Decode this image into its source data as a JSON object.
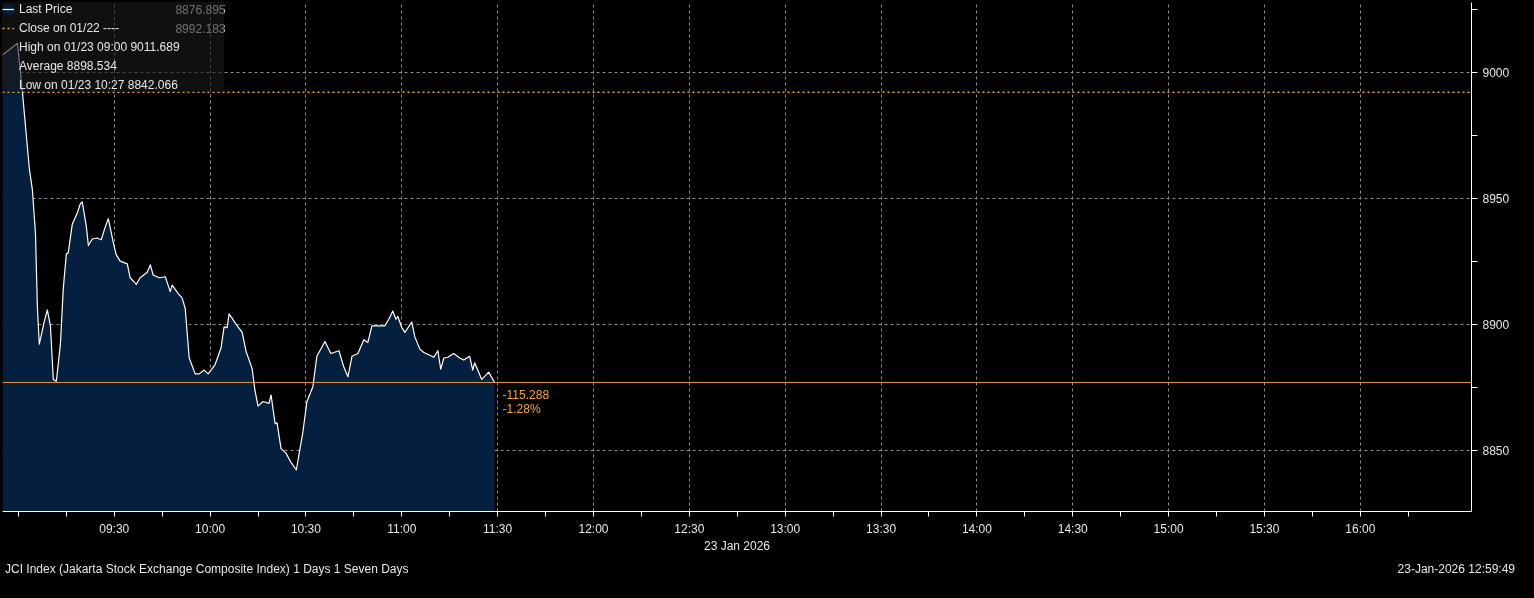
{
  "chart_data": {
    "type": "area",
    "xlabel": "23 Jan 2026",
    "x": [
      8.917,
      8.995,
      9.021,
      9.057,
      9.073,
      9.089,
      9.099,
      9.109,
      9.135,
      9.151,
      9.167,
      9.182,
      9.198,
      9.219,
      9.234,
      9.25,
      9.26,
      9.281,
      9.307,
      9.323,
      9.333,
      9.354,
      9.365,
      9.385,
      9.411,
      9.432,
      9.453,
      9.469,
      9.495,
      9.51,
      9.531,
      9.568,
      9.583,
      9.615,
      9.635,
      9.672,
      9.688,
      9.703,
      9.734,
      9.766,
      9.792,
      9.802,
      9.833,
      9.854,
      9.87,
      9.891,
      9.922,
      9.943,
      9.969,
      9.99,
      10.026,
      10.057,
      10.073,
      10.089,
      10.099,
      10.135,
      10.167,
      10.188,
      10.219,
      10.234,
      10.25,
      10.276,
      10.307,
      10.318,
      10.339,
      10.349,
      10.37,
      10.396,
      10.422,
      10.45,
      10.464,
      10.484,
      10.505,
      10.536,
      10.557,
      10.599,
      10.63,
      10.672,
      10.698,
      10.719,
      10.74,
      10.771,
      10.802,
      10.823,
      10.844,
      10.875,
      10.911,
      10.932,
      10.953,
      10.969,
      10.979,
      11.0,
      11.016,
      11.052,
      11.068,
      11.094,
      11.115,
      11.146,
      11.167,
      11.188,
      11.203,
      11.219,
      11.24,
      11.271,
      11.302,
      11.323,
      11.354,
      11.37,
      11.38,
      11.417,
      11.453,
      11.484
    ],
    "series": [
      {
        "name": "Last Price",
        "color": "#04203e",
        "values": [
          9007.0,
          9011.7,
          8992.3,
          8961.8,
          8953.4,
          8936.1,
          8906.8,
          8892.1,
          8901.2,
          8905.7,
          8899.4,
          8878.1,
          8877.4,
          8892.1,
          8914.1,
          8928.0,
          8928.4,
          8939.8,
          8944.2,
          8947.9,
          8948.6,
          8939.1,
          8931.3,
          8933.9,
          8934.3,
          8933.6,
          8938.7,
          8942.0,
          8932.5,
          8927.7,
          8925.1,
          8924.0,
          8918.5,
          8915.9,
          8918.5,
          8920.7,
          8923.6,
          8919.6,
          8918.5,
          8918.9,
          8913.0,
          8915.6,
          8912.3,
          8910.4,
          8906.4,
          8886.6,
          8880.3,
          8880.3,
          8881.8,
          8880.3,
          8884.0,
          8890.6,
          8899.0,
          8898.7,
          8904.2,
          8900.1,
          8896.8,
          8889.1,
          8882.5,
          8873.7,
          8867.5,
          8869.3,
          8868.6,
          8871.9,
          8860.5,
          8860.9,
          8850.6,
          8848.8,
          8845.1,
          8842.1,
          8848.4,
          8857.2,
          8869.3,
          8875.2,
          8887.3,
          8893.2,
          8888.4,
          8889.5,
          8882.9,
          8879.2,
          8887.3,
          8888.4,
          8893.9,
          8892.8,
          8899.4,
          8899.4,
          8899.4,
          8902.0,
          8905.3,
          8902.0,
          8903.1,
          8898.7,
          8896.8,
          8900.9,
          8895.0,
          8890.2,
          8888.8,
          8887.7,
          8886.9,
          8889.5,
          8882.2,
          8886.6,
          8886.9,
          8888.4,
          8886.6,
          8885.8,
          8887.3,
          8881.8,
          8884.7,
          8878.1,
          8881.0,
          8876.9
        ]
      }
    ],
    "xlim": [
      8.917,
      16.58
    ],
    "ylim": [
      8825.6,
      9027.9
    ],
    "xticks": [
      {
        "value": 9,
        "label": null
      },
      {
        "value": 9.25,
        "label": null
      },
      {
        "value": 9.5,
        "label": "09:30"
      },
      {
        "value": 9.75,
        "label": null
      },
      {
        "value": 10,
        "label": "10:00"
      },
      {
        "value": 10.25,
        "label": null
      },
      {
        "value": 10.5,
        "label": "10:30"
      },
      {
        "value": 10.75,
        "label": null
      },
      {
        "value": 11,
        "label": "11:00"
      },
      {
        "value": 11.25,
        "label": null
      },
      {
        "value": 11.5,
        "label": "11:30"
      },
      {
        "value": 11.75,
        "label": null
      },
      {
        "value": 12,
        "label": "12:00"
      },
      {
        "value": 12.25,
        "label": null
      },
      {
        "value": 12.5,
        "label": "12:30"
      },
      {
        "value": 12.75,
        "label": null
      },
      {
        "value": 13,
        "label": "13:00"
      },
      {
        "value": 13.25,
        "label": null
      },
      {
        "value": 13.5,
        "label": "13:30"
      },
      {
        "value": 13.75,
        "label": null
      },
      {
        "value": 14,
        "label": "14:00"
      },
      {
        "value": 14.25,
        "label": null
      },
      {
        "value": 14.5,
        "label": "14:30"
      },
      {
        "value": 14.75,
        "label": null
      },
      {
        "value": 15,
        "label": "15:00"
      },
      {
        "value": 15.25,
        "label": null
      },
      {
        "value": 15.5,
        "label": "15:30"
      },
      {
        "value": 15.75,
        "label": null
      },
      {
        "value": 16,
        "label": "16:00"
      },
      {
        "value": 16.25,
        "label": null
      }
    ],
    "yticks": [
      8850,
      {
        "value": 8875,
        "label": null
      },
      8900,
      {
        "value": 8925,
        "label": null
      },
      8950,
      {
        "value": 8975,
        "label": null
      },
      9000,
      {
        "value": 9025,
        "label": null
      }
    ],
    "ref_lines": [
      {
        "axis": "y",
        "value": 8992.183,
        "label": "Close on 01/22 ----",
        "color": "#f5a623",
        "line_style": "dotted"
      },
      {
        "axis": "y",
        "value": 8876.895,
        "label": null,
        "color": "#e8953a",
        "line_style": "solid"
      }
    ],
    "annotations": [
      "8876.895",
      "8992.183",
      "High on 01/23 09:00 9011.689",
      "Average 8898.534",
      "Low on 01/23 10:27 8842.066",
      "JCI Index (Jakarta Stock Exchange Composite Index) 1 Days 1 Seven Days",
      "23-Jan-2026 12:59:49",
      {
        "text": "-115.288",
        "x": 11.484,
        "y": 8876.895
      },
      {
        "text": "-1.28%",
        "x": 11.484,
        "y": 8876.895
      }
    ],
    "grid": true,
    "legend": "top left",
    "marker": "none",
    "line_style": "solid"
  }
}
